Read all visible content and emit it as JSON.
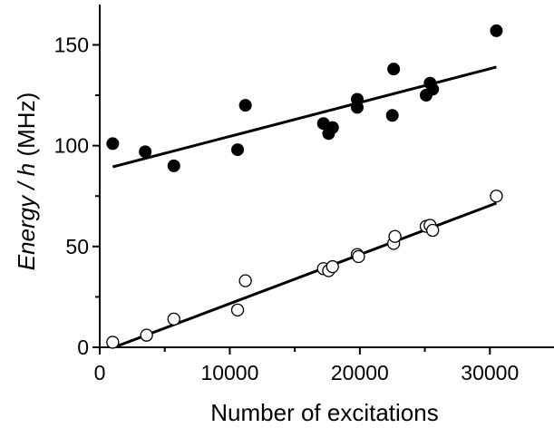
{
  "chart_data": {
    "type": "scatter",
    "title": "",
    "xlabel": "Number of excitations",
    "ylabel": {
      "italic": "Energy / h",
      "unit": " (MHz)"
    },
    "xlim": [
      0,
      35000
    ],
    "ylim": [
      0,
      170
    ],
    "xticks": [
      0,
      10000,
      20000,
      30000
    ],
    "yticks": [
      0,
      50,
      100,
      150
    ],
    "grid": false,
    "series": [
      {
        "marker": "filled-circle",
        "x": [
          1000,
          3500,
          5700,
          10600,
          11200,
          17200,
          17600,
          17900,
          19800,
          19800,
          22500,
          22600,
          25100,
          25400,
          25600,
          30500
        ],
        "y": [
          101,
          97,
          90,
          98,
          120,
          111,
          106,
          109,
          123,
          119,
          115,
          138,
          125,
          131,
          128,
          157
        ],
        "fit": {
          "x": [
            1000,
            30500
          ],
          "y": [
            89.5,
            139
          ]
        }
      },
      {
        "marker": "open-circle",
        "x": [
          1000,
          3600,
          5700,
          10600,
          11200,
          17200,
          17600,
          17900,
          19800,
          19900,
          22600,
          22700,
          25100,
          25400,
          25600,
          30500
        ],
        "y": [
          2.5,
          6,
          14,
          18.5,
          33,
          39,
          38,
          40,
          46,
          45,
          51.5,
          55,
          60,
          60.5,
          58,
          75
        ],
        "fit": {
          "x": [
            1300,
            30500
          ],
          "y": [
            0.5,
            71.5
          ]
        }
      }
    ]
  }
}
